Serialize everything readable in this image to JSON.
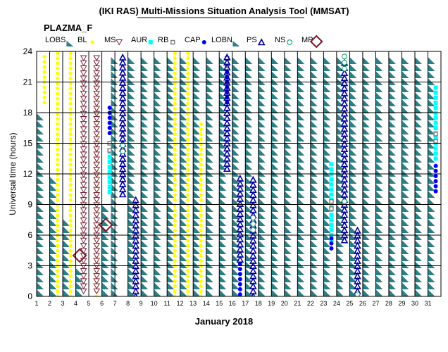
{
  "chart_data": {
    "type": "scatter",
    "title": "(IKI RAS) Multi-Missions Situation Analysis Tool (MMSAT)",
    "subtitle": "PLAZMA_F",
    "xlabel": "January 2018",
    "ylabel": "Universal time (hours)",
    "xlim": [
      1,
      32
    ],
    "ylim": [
      0,
      24
    ],
    "x_ticks": [
      1,
      2,
      3,
      4,
      5,
      6,
      7,
      8,
      9,
      10,
      11,
      12,
      13,
      14,
      15,
      16,
      17,
      18,
      19,
      20,
      21,
      22,
      23,
      24,
      25,
      26,
      27,
      28,
      29,
      30,
      31
    ],
    "y_ticks": [
      0,
      3,
      6,
      9,
      12,
      15,
      18,
      21,
      24
    ],
    "grid": true,
    "legend_position": "top",
    "legend": [
      {
        "key": "LOBS",
        "label": "LOBS",
        "marker": "triangle-teal"
      },
      {
        "key": "BL",
        "label": "BL",
        "marker": "dot-yellow"
      },
      {
        "key": "MS",
        "label": "MS",
        "marker": "triangle-down-open"
      },
      {
        "key": "AUR",
        "label": "AUR",
        "marker": "square-cyan"
      },
      {
        "key": "RB",
        "label": "RB",
        "marker": "square-gray-open"
      },
      {
        "key": "CAP",
        "label": "CAP",
        "marker": "dot-blue"
      },
      {
        "key": "LOBN",
        "label": "LOBN",
        "marker": "triangle-teal"
      },
      {
        "key": "PS",
        "label": "PS",
        "marker": "triangle-open-navy"
      },
      {
        "key": "NS",
        "label": "NS",
        "marker": "circle-open-green"
      },
      {
        "key": "MP",
        "label": "MP",
        "marker": "diamond-open"
      }
    ],
    "colors": {
      "LOBS": "#2e7e86",
      "BL": "#ffff00",
      "MS": "#7a2038",
      "AUR": "#00ffff",
      "RB": "#808080",
      "CAP": "#0000ee",
      "PS": "#000099",
      "NS": "#009966",
      "MP": "#7a1828",
      "grid": "#000000"
    },
    "series": [
      {
        "name": "LOBS",
        "intervals": [
          {
            "day": 1,
            "start": 0,
            "end": 18.5
          },
          {
            "day": 2,
            "start": 0,
            "end": 12
          },
          {
            "day": 3,
            "start": 0,
            "end": 8
          },
          {
            "day": 4,
            "start": 0,
            "end": 3
          },
          {
            "day": 6,
            "start": 0,
            "end": 9.5
          },
          {
            "day": 6.7,
            "start": 0,
            "end": 24
          },
          {
            "day": 8,
            "start": 0,
            "end": 24
          },
          {
            "day": 9,
            "start": 0,
            "end": 24
          },
          {
            "day": 10,
            "start": 0,
            "end": 24
          },
          {
            "day": 11,
            "start": 0,
            "end": 24
          },
          {
            "day": 12,
            "start": 0,
            "end": 24
          },
          {
            "day": 13,
            "start": 0,
            "end": 24
          },
          {
            "day": 14,
            "start": 0,
            "end": 24
          },
          {
            "day": 15,
            "start": 0,
            "end": 24
          },
          {
            "day": 16,
            "start": 0,
            "end": 24
          },
          {
            "day": 17,
            "start": 0,
            "end": 24
          },
          {
            "day": 18,
            "start": 0,
            "end": 24
          },
          {
            "day": 19,
            "start": 0,
            "end": 24
          },
          {
            "day": 20,
            "start": 0,
            "end": 24
          },
          {
            "day": 21,
            "start": 0,
            "end": 24
          },
          {
            "day": 22,
            "start": 0,
            "end": 24
          },
          {
            "day": 23,
            "start": 0,
            "end": 24
          },
          {
            "day": 24,
            "start": 0,
            "end": 24
          },
          {
            "day": 25,
            "start": 0,
            "end": 24
          },
          {
            "day": 26,
            "start": 0,
            "end": 24
          },
          {
            "day": 27,
            "start": 0,
            "end": 24
          },
          {
            "day": 28,
            "start": 0,
            "end": 24
          },
          {
            "day": 29,
            "start": 0,
            "end": 24
          },
          {
            "day": 30,
            "start": 0,
            "end": 24
          },
          {
            "day": 31,
            "start": 0,
            "end": 24
          }
        ]
      },
      {
        "name": "BL",
        "intervals": [
          {
            "day": 1.6,
            "start": 19,
            "end": 23.5
          },
          {
            "day": 2.6,
            "start": 0,
            "end": 24
          },
          {
            "day": 3.6,
            "start": 0,
            "end": 24
          },
          {
            "day": 5.6,
            "start": 0,
            "end": 21.5
          },
          {
            "day": 11.6,
            "start": 0,
            "end": 24
          },
          {
            "day": 12.6,
            "start": 0,
            "end": 24
          },
          {
            "day": 13.6,
            "start": 0,
            "end": 17
          }
        ]
      },
      {
        "name": "MS",
        "intervals": [
          {
            "day": 4.6,
            "start": 0.5,
            "end": 23.5
          },
          {
            "day": 5.6,
            "start": 0.5,
            "end": 23.5
          }
        ]
      },
      {
        "name": "AUR",
        "intervals": [
          {
            "day": 6.6,
            "start": 10.2,
            "end": 14.5
          },
          {
            "day": 23.6,
            "start": 5.5,
            "end": 13
          },
          {
            "day": 31.6,
            "start": 13.5,
            "end": 20.5
          }
        ]
      },
      {
        "name": "RB",
        "points": [
          {
            "day": 6.6,
            "t": 14.3
          },
          {
            "day": 6.6,
            "t": 15
          },
          {
            "day": 15.6,
            "t": 22.6
          },
          {
            "day": 15.6,
            "t": 23.3
          },
          {
            "day": 23.6,
            "t": 8.6
          },
          {
            "day": 23.6,
            "t": 9.3
          },
          {
            "day": 31.6,
            "t": 15.2
          },
          {
            "day": 31.6,
            "t": 15.9
          }
        ]
      },
      {
        "name": "CAP",
        "intervals": [
          {
            "day": 6.6,
            "start": 16,
            "end": 18.8
          },
          {
            "day": 15.6,
            "start": 19,
            "end": 22
          },
          {
            "day": 16.6,
            "start": 0.2,
            "end": 3.6
          },
          {
            "day": 23.6,
            "start": 4.7,
            "end": 5.7
          },
          {
            "day": 31.6,
            "start": 10.3,
            "end": 13.2
          }
        ]
      },
      {
        "name": "PS",
        "intervals": [
          {
            "day": 7.6,
            "start": 10,
            "end": 23.7
          },
          {
            "day": 8.6,
            "start": 0,
            "end": 9.6
          },
          {
            "day": 15.6,
            "start": 12.5,
            "end": 23.7
          },
          {
            "day": 16.6,
            "start": 3.6,
            "end": 11.6
          },
          {
            "day": 17.6,
            "start": 0,
            "end": 11.6
          },
          {
            "day": 24.6,
            "start": 5.5,
            "end": 23
          },
          {
            "day": 25.6,
            "start": 0,
            "end": 6.6
          }
        ]
      },
      {
        "name": "NS",
        "points": [
          {
            "day": 7.6,
            "t": 14.2
          },
          {
            "day": 7.6,
            "t": 14.8
          },
          {
            "day": 17.6,
            "t": 6.5
          },
          {
            "day": 17.6,
            "t": 7.1
          },
          {
            "day": 17.6,
            "t": 7.7
          },
          {
            "day": 24.6,
            "t": 9.3
          },
          {
            "day": 24.6,
            "t": 22.3
          },
          {
            "day": 24.6,
            "t": 22.9
          },
          {
            "day": 24.6,
            "t": 23.5
          },
          {
            "day": 25.6,
            "t": 0.2
          }
        ]
      },
      {
        "name": "MP",
        "points": [
          {
            "day": 4.3,
            "t": 4
          },
          {
            "day": 6.3,
            "t": 7
          }
        ]
      }
    ]
  }
}
